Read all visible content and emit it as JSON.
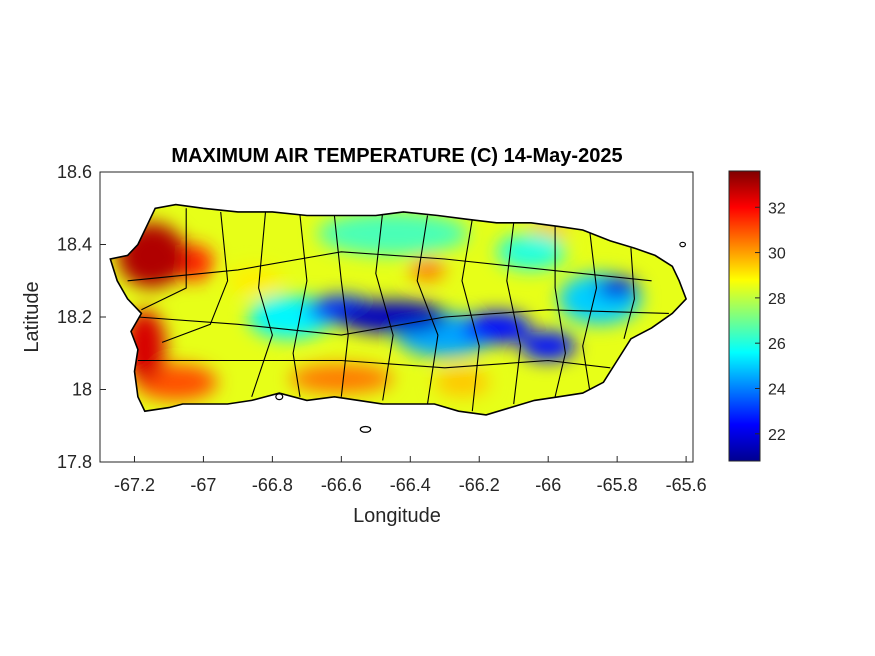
{
  "figure": {
    "title": "MAXIMUM AIR TEMPERATURE (C) 14-May-2025",
    "xlabel": "Longitude",
    "ylabel": "Latitude"
  },
  "axes": {
    "xlim": [
      -67.3,
      -65.58
    ],
    "ylim": [
      17.8,
      18.6
    ],
    "x_ticks": [
      {
        "value": -67.2,
        "label": "-67.2"
      },
      {
        "value": -67.0,
        "label": "-67"
      },
      {
        "value": -66.8,
        "label": "-66.8"
      },
      {
        "value": -66.6,
        "label": "-66.6"
      },
      {
        "value": -66.4,
        "label": "-66.4"
      },
      {
        "value": -66.2,
        "label": "-66.2"
      },
      {
        "value": -66.0,
        "label": "-66"
      },
      {
        "value": -65.8,
        "label": "-65.8"
      },
      {
        "value": -65.6,
        "label": "-65.6"
      }
    ],
    "y_ticks": [
      {
        "value": 18.6,
        "label": "18.6"
      },
      {
        "value": 18.4,
        "label": "18.4"
      },
      {
        "value": 18.2,
        "label": "18.2"
      },
      {
        "value": 18.0,
        "label": "18"
      },
      {
        "value": 17.8,
        "label": "17.8"
      }
    ]
  },
  "colorbar": {
    "colormap": "jet",
    "range": [
      20.8,
      33.6
    ],
    "ticks": [
      {
        "value": 32,
        "label": "32"
      },
      {
        "value": 30,
        "label": "30"
      },
      {
        "value": 28,
        "label": "28"
      },
      {
        "value": 26,
        "label": "26"
      },
      {
        "value": 24,
        "label": "24"
      },
      {
        "value": 22,
        "label": "22"
      }
    ],
    "jet_stops": [
      "#00008f",
      "#0000ff",
      "#00ffff",
      "#ffff00",
      "#ff0000",
      "#800000"
    ]
  },
  "map_data": {
    "type": "filled-contour",
    "units": "C",
    "region": "Puerto Rico",
    "island_outline": [
      [
        -67.22,
        18.37
      ],
      [
        -67.19,
        18.4
      ],
      [
        -67.16,
        18.46
      ],
      [
        -67.14,
        18.5
      ],
      [
        -67.08,
        18.51
      ],
      [
        -67.0,
        18.5
      ],
      [
        -66.9,
        18.49
      ],
      [
        -66.8,
        18.49
      ],
      [
        -66.7,
        18.48
      ],
      [
        -66.6,
        18.48
      ],
      [
        -66.5,
        18.48
      ],
      [
        -66.42,
        18.49
      ],
      [
        -66.32,
        18.48
      ],
      [
        -66.24,
        18.47
      ],
      [
        -66.15,
        18.46
      ],
      [
        -66.05,
        18.46
      ],
      [
        -65.97,
        18.45
      ],
      [
        -65.9,
        18.44
      ],
      [
        -65.82,
        18.41
      ],
      [
        -65.75,
        18.39
      ],
      [
        -65.69,
        18.37
      ],
      [
        -65.64,
        18.34
      ],
      [
        -65.62,
        18.3
      ],
      [
        -65.6,
        18.25
      ],
      [
        -65.64,
        18.21
      ],
      [
        -65.7,
        18.17
      ],
      [
        -65.76,
        18.14
      ],
      [
        -65.8,
        18.08
      ],
      [
        -65.84,
        18.02
      ],
      [
        -65.9,
        17.99
      ],
      [
        -65.97,
        17.98
      ],
      [
        -66.04,
        17.97
      ],
      [
        -66.11,
        17.95
      ],
      [
        -66.18,
        17.93
      ],
      [
        -66.26,
        17.94
      ],
      [
        -66.33,
        17.96
      ],
      [
        -66.4,
        17.96
      ],
      [
        -66.48,
        17.96
      ],
      [
        -66.55,
        17.97
      ],
      [
        -66.62,
        17.98
      ],
      [
        -66.7,
        17.97
      ],
      [
        -66.78,
        17.99
      ],
      [
        -66.86,
        17.97
      ],
      [
        -66.93,
        17.96
      ],
      [
        -67.0,
        17.96
      ],
      [
        -67.06,
        17.96
      ],
      [
        -67.1,
        17.95
      ],
      [
        -67.17,
        17.94
      ],
      [
        -67.19,
        17.98
      ],
      [
        -67.2,
        18.05
      ],
      [
        -67.19,
        18.11
      ],
      [
        -67.21,
        18.16
      ],
      [
        -67.18,
        18.21
      ],
      [
        -67.22,
        18.25
      ],
      [
        -67.25,
        18.3
      ],
      [
        -67.27,
        18.36
      ]
    ],
    "temperature_features": [
      {
        "lon": -66.45,
        "lat": 18.2,
        "rx": 0.16,
        "ry": 0.045,
        "value": 21.5
      },
      {
        "lon": -66.6,
        "lat": 18.22,
        "rx": 0.1,
        "ry": 0.04,
        "value": 23.0
      },
      {
        "lon": -66.15,
        "lat": 18.17,
        "rx": 0.1,
        "ry": 0.045,
        "value": 22.5
      },
      {
        "lon": -66.0,
        "lat": 18.12,
        "rx": 0.08,
        "ry": 0.04,
        "value": 22.5
      },
      {
        "lon": -65.8,
        "lat": 18.28,
        "rx": 0.06,
        "ry": 0.03,
        "value": 22.0
      },
      {
        "lon": -66.3,
        "lat": 18.15,
        "rx": 0.14,
        "ry": 0.06,
        "value": 24.5
      },
      {
        "lon": -66.75,
        "lat": 18.2,
        "rx": 0.12,
        "ry": 0.06,
        "value": 25.5
      },
      {
        "lon": -65.85,
        "lat": 18.25,
        "rx": 0.12,
        "ry": 0.07,
        "value": 25.0
      },
      {
        "lon": -66.45,
        "lat": 18.43,
        "rx": 0.22,
        "ry": 0.06,
        "value": 26.5
      },
      {
        "lon": -66.05,
        "lat": 18.38,
        "rx": 0.1,
        "ry": 0.05,
        "value": 26.0
      },
      {
        "lon": -67.15,
        "lat": 18.37,
        "rx": 0.1,
        "ry": 0.09,
        "value": 33.0
      },
      {
        "lon": -67.03,
        "lat": 18.35,
        "rx": 0.06,
        "ry": 0.05,
        "value": 31.5
      },
      {
        "lon": -67.17,
        "lat": 18.12,
        "rx": 0.06,
        "ry": 0.1,
        "value": 32.5
      },
      {
        "lon": -67.08,
        "lat": 18.02,
        "rx": 0.12,
        "ry": 0.05,
        "value": 31.0
      },
      {
        "lon": -66.6,
        "lat": 18.03,
        "rx": 0.15,
        "ry": 0.04,
        "value": 30.5
      },
      {
        "lon": -66.35,
        "lat": 18.33,
        "rx": 0.05,
        "ry": 0.03,
        "value": 30.5
      },
      {
        "lon": -66.25,
        "lat": 18.02,
        "rx": 0.08,
        "ry": 0.04,
        "value": 29.5
      },
      {
        "lon": -66.85,
        "lat": 18.3,
        "rx": 0.08,
        "ry": 0.04,
        "value": 29.0
      },
      {
        "lon": -66.0,
        "lat": 18.44,
        "rx": 0.06,
        "ry": 0.03,
        "value": 29.5
      }
    ],
    "base_temperature": 28.5,
    "municipal_boundaries": [
      [
        [
          -67.05,
          18.5
        ],
        [
          -67.05,
          18.28
        ],
        [
          -67.18,
          18.22
        ]
      ],
      [
        [
          -66.95,
          18.49
        ],
        [
          -66.93,
          18.3
        ],
        [
          -66.98,
          18.18
        ],
        [
          -67.12,
          18.13
        ]
      ],
      [
        [
          -66.82,
          18.49
        ],
        [
          -66.84,
          18.28
        ],
        [
          -66.8,
          18.15
        ],
        [
          -66.86,
          17.98
        ]
      ],
      [
        [
          -66.72,
          18.48
        ],
        [
          -66.7,
          18.3
        ],
        [
          -66.74,
          18.1
        ],
        [
          -66.72,
          17.98
        ]
      ],
      [
        [
          -66.62,
          18.48
        ],
        [
          -66.6,
          18.3
        ],
        [
          -66.58,
          18.15
        ],
        [
          -66.6,
          17.98
        ]
      ],
      [
        [
          -66.48,
          18.49
        ],
        [
          -66.5,
          18.32
        ],
        [
          -66.45,
          18.15
        ],
        [
          -66.48,
          17.97
        ]
      ],
      [
        [
          -66.35,
          18.48
        ],
        [
          -66.38,
          18.3
        ],
        [
          -66.32,
          18.15
        ],
        [
          -66.35,
          17.96
        ]
      ],
      [
        [
          -66.22,
          18.47
        ],
        [
          -66.25,
          18.3
        ],
        [
          -66.2,
          18.12
        ],
        [
          -66.22,
          17.94
        ]
      ],
      [
        [
          -66.1,
          18.46
        ],
        [
          -66.12,
          18.3
        ],
        [
          -66.08,
          18.12
        ],
        [
          -66.1,
          17.96
        ]
      ],
      [
        [
          -65.98,
          18.45
        ],
        [
          -65.98,
          18.28
        ],
        [
          -65.95,
          18.1
        ],
        [
          -65.98,
          17.98
        ]
      ],
      [
        [
          -65.88,
          18.44
        ],
        [
          -65.86,
          18.28
        ],
        [
          -65.9,
          18.12
        ],
        [
          -65.88,
          18.0
        ]
      ],
      [
        [
          -65.76,
          18.39
        ],
        [
          -65.75,
          18.25
        ],
        [
          -65.78,
          18.14
        ]
      ],
      [
        [
          -67.22,
          18.3
        ],
        [
          -66.9,
          18.33
        ],
        [
          -66.6,
          18.38
        ],
        [
          -66.3,
          18.36
        ],
        [
          -66.0,
          18.33
        ],
        [
          -65.7,
          18.3
        ]
      ],
      [
        [
          -67.19,
          18.2
        ],
        [
          -66.9,
          18.18
        ],
        [
          -66.6,
          18.15
        ],
        [
          -66.3,
          18.2
        ],
        [
          -66.0,
          18.22
        ],
        [
          -65.65,
          18.21
        ]
      ],
      [
        [
          -67.19,
          18.08
        ],
        [
          -66.9,
          18.08
        ],
        [
          -66.6,
          18.08
        ],
        [
          -66.3,
          18.06
        ],
        [
          -66.0,
          18.08
        ],
        [
          -65.82,
          18.06
        ]
      ]
    ],
    "small_islands": [
      {
        "lon": -66.53,
        "lat": 17.89,
        "rx": 0.015,
        "ry": 0.008
      },
      {
        "lon": -66.78,
        "lat": 17.98,
        "rx": 0.01,
        "ry": 0.008
      },
      {
        "lon": -65.61,
        "lat": 18.4,
        "rx": 0.008,
        "ry": 0.006
      }
    ]
  }
}
